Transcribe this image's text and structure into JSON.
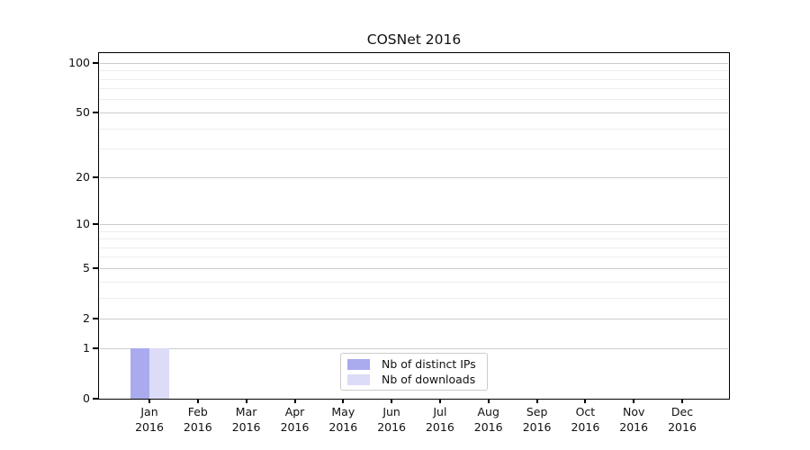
{
  "chart_data": {
    "type": "bar",
    "title": "COSNet 2016",
    "categories": [
      "Jan 2016",
      "Feb 2016",
      "Mar 2016",
      "Apr 2016",
      "May 2016",
      "Jun 2016",
      "Jul 2016",
      "Aug 2016",
      "Sep 2016",
      "Oct 2016",
      "Nov 2016",
      "Dec 2016"
    ],
    "x_tick_labels": [
      {
        "line1": "Jan",
        "line2": "2016"
      },
      {
        "line1": "Feb",
        "line2": "2016"
      },
      {
        "line1": "Mar",
        "line2": "2016"
      },
      {
        "line1": "Apr",
        "line2": "2016"
      },
      {
        "line1": "May",
        "line2": "2016"
      },
      {
        "line1": "Jun",
        "line2": "2016"
      },
      {
        "line1": "Jul",
        "line2": "2016"
      },
      {
        "line1": "Aug",
        "line2": "2016"
      },
      {
        "line1": "Sep",
        "line2": "2016"
      },
      {
        "line1": "Oct",
        "line2": "2016"
      },
      {
        "line1": "Nov",
        "line2": "2016"
      },
      {
        "line1": "Dec",
        "line2": "2016"
      }
    ],
    "series": [
      {
        "name": "Nb of distinct IPs",
        "color": "#aaaaee",
        "values": [
          1,
          0,
          0,
          0,
          0,
          0,
          0,
          0,
          0,
          0,
          0,
          0
        ]
      },
      {
        "name": "Nb of downloads",
        "color": "#dcdcf8",
        "values": [
          1,
          0,
          0,
          0,
          0,
          0,
          0,
          0,
          0,
          0,
          0,
          0
        ]
      }
    ],
    "y_axis": {
      "scale": "log1p",
      "tick_labels": [
        "0",
        "1",
        "2",
        "5",
        "10",
        "20",
        "50",
        "100"
      ],
      "ticks": [
        0,
        1,
        2,
        5,
        10,
        20,
        50,
        100
      ],
      "minor_ticks": [
        3,
        4,
        6,
        7,
        8,
        9,
        30,
        40,
        60,
        70,
        80,
        90
      ],
      "ylim": [
        0,
        115
      ]
    },
    "grid": {
      "enabled": true,
      "major_color": "#cccccc",
      "minor_color": "#ededed"
    },
    "legend": {
      "position": "lower center"
    }
  }
}
